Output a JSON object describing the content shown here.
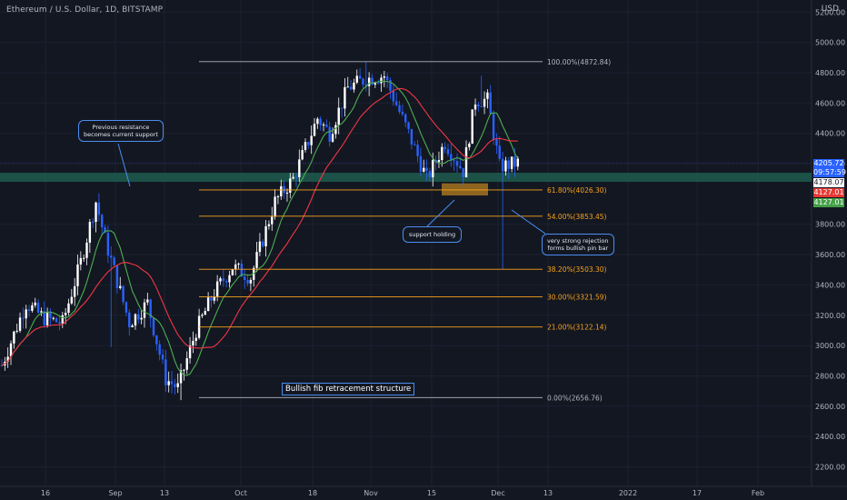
{
  "header": {
    "title": "Ethereum / U.S. Dollar, 1D, BITSTAMP",
    "currency": "USD"
  },
  "price_scale": {
    "ticks": [
      "5200.00",
      "5000.00",
      "4800.00",
      "4600.00",
      "4400.00",
      "4200.00",
      "3800.00",
      "3600.00",
      "3400.00",
      "3200.00",
      "3000.00",
      "2800.00",
      "2600.00",
      "2400.00",
      "2200.00"
    ],
    "tags": [
      {
        "text": "4205.72",
        "bg": "#2962ff",
        "fg": "#ffffff"
      },
      {
        "text": "09:57:59",
        "bg": "#2962ff",
        "fg": "#ffffff"
      },
      {
        "text": "4178.07",
        "bg": "#ffffff",
        "fg": "#131722"
      },
      {
        "text": "4127.01",
        "bg": "#e53935",
        "fg": "#ffffff"
      },
      {
        "text": "4127.01",
        "bg": "#43a047",
        "fg": "#ffffff"
      }
    ]
  },
  "time_axis": [
    "16",
    "Sep",
    "13",
    "Oct",
    "18",
    "Nov",
    "15",
    "Dec",
    "13",
    "2022",
    "17",
    "Feb"
  ],
  "annotations": {
    "resistance": "Previous resistance\nbecomes current support",
    "support": "support holding",
    "rejection": "very strong rejection\nforms bullish pin bar",
    "structure": "Bullish fib retracement structure"
  },
  "colors": {
    "background": "#131722",
    "up": "#ffffff",
    "down": "#2962ff",
    "ma_fast": "#4caf50",
    "ma_slow": "#f23645",
    "fib": "#f7a21b",
    "support_zone": "#1e5c4e"
  },
  "chart_data": {
    "type": "candlestick",
    "symbol": "ETHUSD",
    "interval": "1D",
    "ylim": [
      2100,
      5300
    ],
    "fib_levels": [
      {
        "label": "100.00%(4872.84)",
        "value": 4872.84
      },
      {
        "label": "61.80%(4026.30)",
        "value": 4026.3
      },
      {
        "label": "54.00%(3853.45)",
        "value": 3853.45
      },
      {
        "label": "38.20%(3503.30)",
        "value": 3503.3
      },
      {
        "label": "30.00%(3321.59)",
        "value": 3321.59
      },
      {
        "label": "21.00%(3122.14)",
        "value": 3122.14
      },
      {
        "label": "0.00%(2656.76)",
        "value": 2656.76
      }
    ],
    "support_zone": [
      4080,
      4140
    ],
    "last_price": 4205.72
  }
}
